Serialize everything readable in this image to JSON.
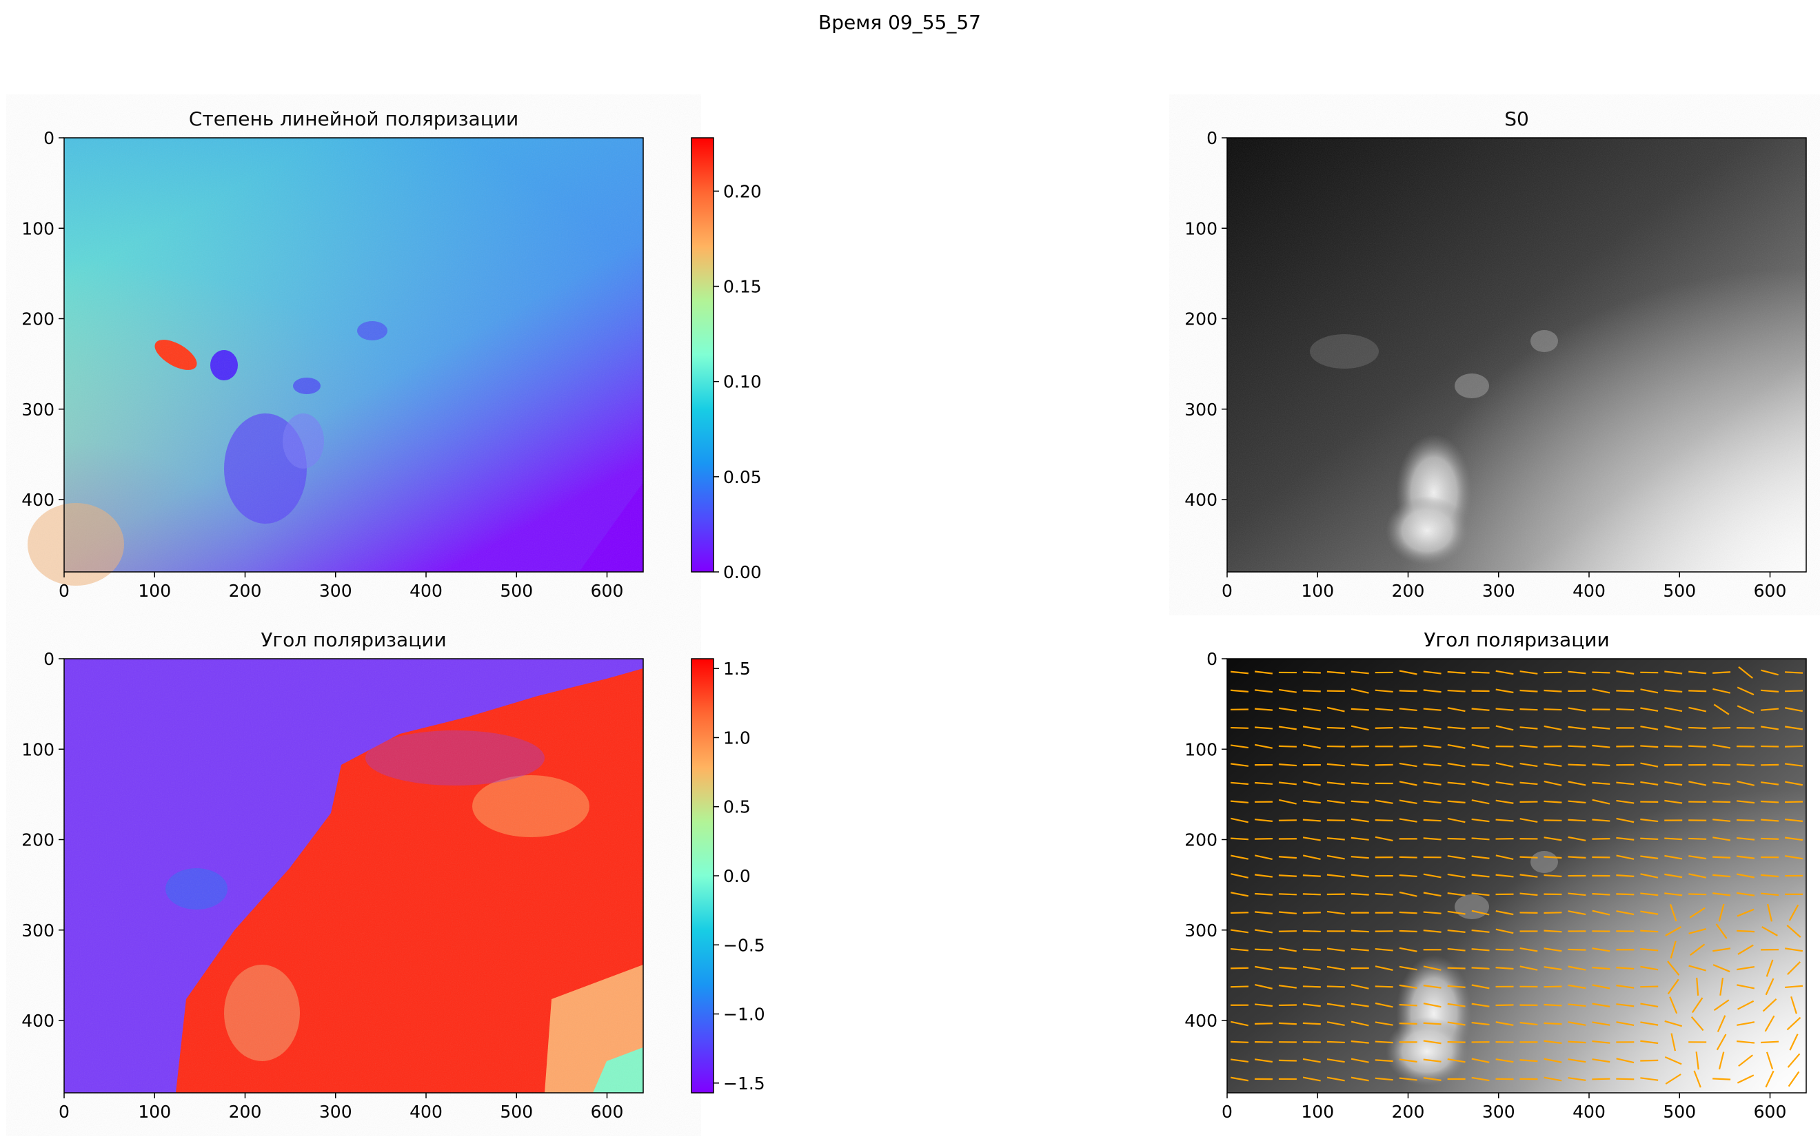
{
  "suptitle": "Время 09_55_57",
  "chart_data": [
    {
      "type": "heatmap",
      "title": "Степень линейной поляризации",
      "colormap": "rainbow",
      "xlim": [
        0,
        640
      ],
      "ylim": [
        480,
        0
      ],
      "x_ticks": [
        0,
        100,
        200,
        300,
        400,
        500,
        600
      ],
      "y_ticks": [
        0,
        100,
        200,
        300,
        400
      ],
      "colorbar": {
        "range": [
          0.0,
          0.228
        ],
        "ticks": [
          "0.00",
          "0.05",
          "0.10",
          "0.15",
          "0.20"
        ]
      }
    },
    {
      "type": "heatmap",
      "title": "S0",
      "colormap": "gray",
      "xlim": [
        0,
        640
      ],
      "ylim": [
        480,
        0
      ],
      "x_ticks": [
        0,
        100,
        200,
        300,
        400,
        500,
        600
      ],
      "y_ticks": [
        0,
        100,
        200,
        300,
        400
      ]
    },
    {
      "type": "heatmap",
      "title": "Угол поляризации",
      "colormap": "rainbow",
      "xlim": [
        0,
        640
      ],
      "ylim": [
        480,
        0
      ],
      "x_ticks": [
        0,
        100,
        200,
        300,
        400,
        500,
        600
      ],
      "y_ticks": [
        0,
        100,
        200,
        300,
        400
      ],
      "colorbar": {
        "range": [
          -1.5708,
          1.5708
        ],
        "ticks": [
          "−1.5",
          "−1.0",
          "−0.5",
          "0.0",
          "0.5",
          "1.0",
          "1.5"
        ]
      }
    },
    {
      "type": "heatmap",
      "title": "Угол поляризации",
      "colormap": "gray",
      "overlay": "quiver",
      "overlay_color": "#ffa500",
      "xlim": [
        0,
        640
      ],
      "ylim": [
        480,
        0
      ],
      "x_ticks": [
        0,
        100,
        200,
        300,
        400,
        500,
        600
      ],
      "y_ticks": [
        0,
        100,
        200,
        300,
        400
      ]
    }
  ]
}
